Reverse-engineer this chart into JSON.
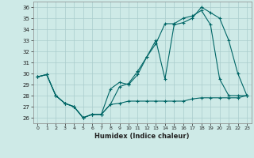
{
  "xlabel": "Humidex (Indice chaleur)",
  "bg_color": "#ceeae7",
  "grid_color": "#aacccc",
  "line_color": "#006666",
  "x": [
    0,
    1,
    2,
    3,
    4,
    5,
    6,
    7,
    8,
    9,
    10,
    11,
    12,
    13,
    14,
    15,
    16,
    17,
    18,
    19,
    20,
    21,
    22,
    23
  ],
  "line1": [
    29.7,
    29.9,
    28.0,
    27.3,
    27.0,
    26.0,
    26.3,
    26.3,
    28.6,
    29.2,
    29.0,
    29.9,
    31.5,
    33.0,
    29.5,
    34.4,
    34.6,
    35.0,
    36.0,
    35.5,
    35.0,
    33.0,
    30.0,
    28.0
  ],
  "line2": [
    29.7,
    29.9,
    28.0,
    27.3,
    27.0,
    26.0,
    26.3,
    26.3,
    27.2,
    27.3,
    27.5,
    27.5,
    27.5,
    27.5,
    27.5,
    27.5,
    27.5,
    27.7,
    27.8,
    27.8,
    27.8,
    27.8,
    27.8,
    28.0
  ],
  "line3": [
    29.7,
    29.9,
    28.0,
    27.3,
    27.0,
    26.0,
    26.3,
    26.3,
    27.2,
    28.8,
    29.1,
    30.2,
    31.5,
    32.7,
    34.5,
    34.5,
    35.0,
    35.2,
    35.7,
    34.4,
    29.5,
    28.0,
    28.0,
    28.0
  ],
  "ylim": [
    25.5,
    36.5
  ],
  "xlim": [
    -0.5,
    23.5
  ],
  "yticks": [
    26,
    27,
    28,
    29,
    30,
    31,
    32,
    33,
    34,
    35,
    36
  ],
  "xticks": [
    0,
    1,
    2,
    3,
    4,
    5,
    6,
    7,
    8,
    9,
    10,
    11,
    12,
    13,
    14,
    15,
    16,
    17,
    18,
    19,
    20,
    21,
    22,
    23
  ]
}
